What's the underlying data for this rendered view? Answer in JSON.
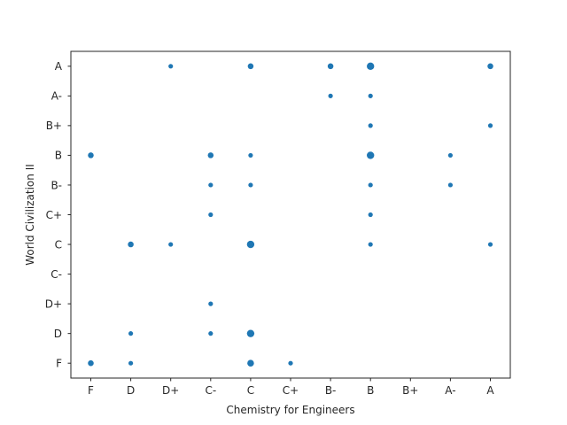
{
  "chart_data": {
    "type": "scatter",
    "title": "",
    "xlabel": "Chemistry for Engineers",
    "ylabel": "World Civilization II",
    "x_categories": [
      "F",
      "D",
      "D+",
      "C-",
      "C",
      "C+",
      "B-",
      "B",
      "B+",
      "A-",
      "A"
    ],
    "y_categories": [
      "F",
      "D",
      "D+",
      "C-",
      "C",
      "C+",
      "B-",
      "B",
      "B+",
      "A-",
      "A"
    ],
    "marker_color": "#1f77b4",
    "grid": false,
    "legend": "none",
    "note_size": "marker area encodes number of students",
    "points": [
      {
        "x": "D+",
        "y": "A",
        "count": 1
      },
      {
        "x": "C",
        "y": "A",
        "count": 2
      },
      {
        "x": "B-",
        "y": "A",
        "count": 2
      },
      {
        "x": "B",
        "y": "A",
        "count": 4
      },
      {
        "x": "A",
        "y": "A",
        "count": 2
      },
      {
        "x": "B-",
        "y": "A-",
        "count": 1
      },
      {
        "x": "B",
        "y": "A-",
        "count": 1
      },
      {
        "x": "B",
        "y": "B+",
        "count": 1
      },
      {
        "x": "A",
        "y": "B+",
        "count": 1
      },
      {
        "x": "F",
        "y": "B",
        "count": 2
      },
      {
        "x": "C-",
        "y": "B",
        "count": 2
      },
      {
        "x": "C",
        "y": "B",
        "count": 1
      },
      {
        "x": "B",
        "y": "B",
        "count": 4
      },
      {
        "x": "A-",
        "y": "B",
        "count": 1
      },
      {
        "x": "C-",
        "y": "B-",
        "count": 1
      },
      {
        "x": "C",
        "y": "B-",
        "count": 1
      },
      {
        "x": "B",
        "y": "B-",
        "count": 1
      },
      {
        "x": "A-",
        "y": "B-",
        "count": 1
      },
      {
        "x": "C-",
        "y": "C+",
        "count": 1
      },
      {
        "x": "B",
        "y": "C+",
        "count": 1
      },
      {
        "x": "D",
        "y": "C",
        "count": 2
      },
      {
        "x": "D+",
        "y": "C",
        "count": 1
      },
      {
        "x": "C",
        "y": "C",
        "count": 4
      },
      {
        "x": "B",
        "y": "C",
        "count": 1
      },
      {
        "x": "A",
        "y": "C",
        "count": 1
      },
      {
        "x": "C-",
        "y": "D+",
        "count": 1
      },
      {
        "x": "D",
        "y": "D",
        "count": 1
      },
      {
        "x": "C-",
        "y": "D",
        "count": 1
      },
      {
        "x": "C",
        "y": "D",
        "count": 4
      },
      {
        "x": "F",
        "y": "F",
        "count": 2
      },
      {
        "x": "D",
        "y": "F",
        "count": 1
      },
      {
        "x": "C",
        "y": "F",
        "count": 3
      },
      {
        "x": "C+",
        "y": "F",
        "count": 1
      }
    ]
  }
}
